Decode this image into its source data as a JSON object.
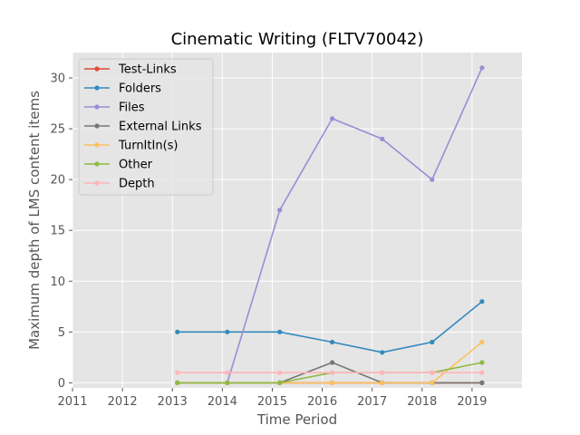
{
  "chart_data": {
    "type": "line",
    "title": "Cinematic Writing (FLTV70042)",
    "xlabel": "Time Period",
    "ylabel": "Maximum depth of LMS content items",
    "xlim": [
      2011,
      2020
    ],
    "ylim": [
      -0.5,
      32.5
    ],
    "xticks": [
      "2011",
      "2012",
      "2013",
      "2014",
      "2015",
      "2016",
      "2017",
      "2018",
      "2019"
    ],
    "yticks": [
      "0",
      "5",
      "10",
      "15",
      "20",
      "25",
      "30"
    ],
    "grid": true,
    "legend_position": "upper-left",
    "x": [
      2013.1,
      2014.1,
      2015.15,
      2016.2,
      2017.2,
      2018.2,
      2019.2
    ],
    "series": [
      {
        "name": "Test-Links",
        "color": "#e24a33",
        "values": [
          0,
          0,
          0,
          0,
          0,
          0,
          0
        ]
      },
      {
        "name": "Folders",
        "color": "#348abd",
        "values": [
          5,
          5,
          5,
          4,
          3,
          4,
          8
        ]
      },
      {
        "name": "Files",
        "color": "#988ed5",
        "values": [
          null,
          0,
          17,
          26,
          24,
          20,
          31
        ]
      },
      {
        "name": "External Links",
        "color": "#777777",
        "values": [
          0,
          0,
          0,
          2,
          0,
          0,
          0
        ]
      },
      {
        "name": "TurnItIn(s)",
        "color": "#fbc15e",
        "values": [
          0,
          0,
          0,
          0,
          0,
          0,
          4
        ]
      },
      {
        "name": "Other",
        "color": "#8eba42",
        "values": [
          0,
          0,
          0,
          1,
          1,
          1,
          2
        ]
      },
      {
        "name": "Depth",
        "color": "#ffb5b8",
        "values": [
          1,
          1,
          1,
          1,
          1,
          1,
          1
        ]
      }
    ]
  }
}
